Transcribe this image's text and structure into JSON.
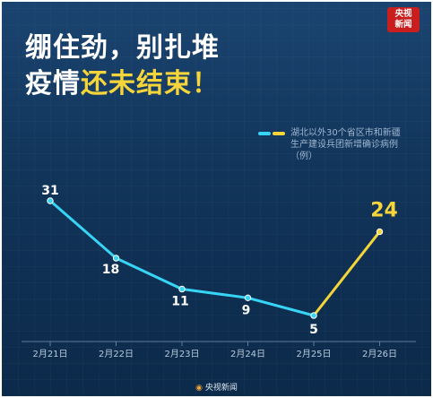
{
  "logo": {
    "line1": "央视",
    "line2": "新闻"
  },
  "headline": {
    "line1": "绷住劲，别扎堆",
    "line2_white": "疫情",
    "line2_highlight": "还未结束！"
  },
  "legend": {
    "text": "湖北以外30个省区市和新疆生产建设兵团新增确诊病例（例）"
  },
  "footer": {
    "text": "央视新闻"
  },
  "colors": {
    "line_main": "#37d5f5",
    "line_last": "#f5d53a",
    "background": "#113459"
  },
  "chart_data": {
    "type": "line",
    "categories": [
      "2月21日",
      "2月22日",
      "2月23日",
      "2月24日",
      "2月25日",
      "2月26日"
    ],
    "series": [
      {
        "values": [
          31,
          18,
          11,
          9,
          5,
          24
        ]
      }
    ],
    "data_labels": [
      "31",
      "18",
      "11",
      "9",
      "5",
      "24"
    ],
    "grid": false
  }
}
